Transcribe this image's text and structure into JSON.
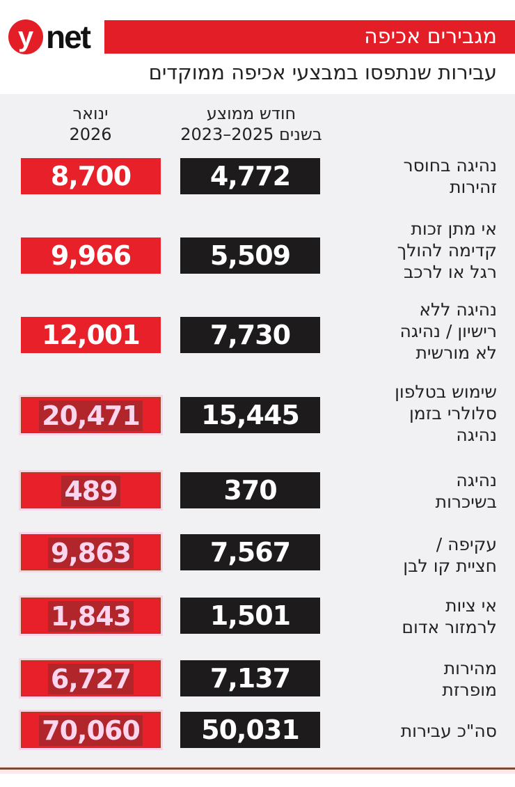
{
  "header": {
    "logo": {
      "mark": "y",
      "text": "net"
    },
    "title": "מגבירים אכיפה",
    "subtitle": "עבירות שנתפסו במבצעי אכיפה ממוקדים"
  },
  "columns": {
    "avg": {
      "line1": "חודש ממוצע",
      "line2": "בשנים 2025–2023"
    },
    "jan": {
      "line1": "ינואר",
      "line2": "2026"
    }
  },
  "colors": {
    "accent_red": "#e8202a",
    "box_black": "#1d1b1c",
    "panel_bg": "#f1f1f3",
    "title_red": "#e41e26"
  },
  "rows": [
    {
      "label": [
        "נהיגה בחוסר",
        "זהירות"
      ],
      "avg": "4,772",
      "jan": "8,700"
    },
    {
      "label": [
        "אי מתן זכות",
        "קדימה להולך",
        "רגל או לרכב"
      ],
      "avg": "5,509",
      "jan": "9,966"
    },
    {
      "label": [
        "נהיגה ללא",
        "רישיון / נהיגה",
        "לא מורשית"
      ],
      "avg": "7,730",
      "jan": "12,001"
    },
    {
      "label": [
        "שימוש בטלפון",
        "סלולרי בזמן",
        "נהיגה"
      ],
      "avg": "15,445",
      "jan": "20,471"
    },
    {
      "label": [
        "נהיגה",
        "בשיכרות"
      ],
      "avg": "370",
      "jan": "489"
    },
    {
      "label": [
        "עקיפה /",
        "חציית קו לבן"
      ],
      "avg": "7,567",
      "jan": "9,863"
    },
    {
      "label": [
        "אי ציות",
        "לרמזור אדום"
      ],
      "avg": "1,501",
      "jan": "1,843"
    },
    {
      "label": [
        "מהירות",
        "מופרזת"
      ],
      "avg": "7,137",
      "jan": "6,727"
    },
    {
      "label": [
        "סה\"כ עבירות"
      ],
      "avg": "50,031",
      "jan": "70,060"
    }
  ],
  "chart_data": {
    "type": "table",
    "title": "מגבירים אכיפה",
    "subtitle": "עבירות שנתפסו במבצעי אכיפה ממוקדים",
    "categories": [
      "נהיגה בחוסר זהירות",
      "אי מתן זכות קדימה להולך רגל או לרכב",
      "נהיגה ללא רישיון / נהיגה לא מורשית",
      "שימוש בטלפון סלולרי בזמן נהיגה",
      "נהיגה בשיכרות",
      "עקיפה / חציית קו לבן",
      "אי ציות לרמזור אדום",
      "מהירות מופרזת",
      "סה\"כ עבירות"
    ],
    "series": [
      {
        "name": "חודש ממוצע בשנים 2025–2023",
        "values": [
          4772,
          5509,
          7730,
          15445,
          370,
          7567,
          1501,
          7137,
          50031
        ]
      },
      {
        "name": "ינואר 2026",
        "values": [
          8700,
          9966,
          12001,
          20471,
          489,
          9863,
          1843,
          6727,
          70060
        ]
      }
    ]
  }
}
